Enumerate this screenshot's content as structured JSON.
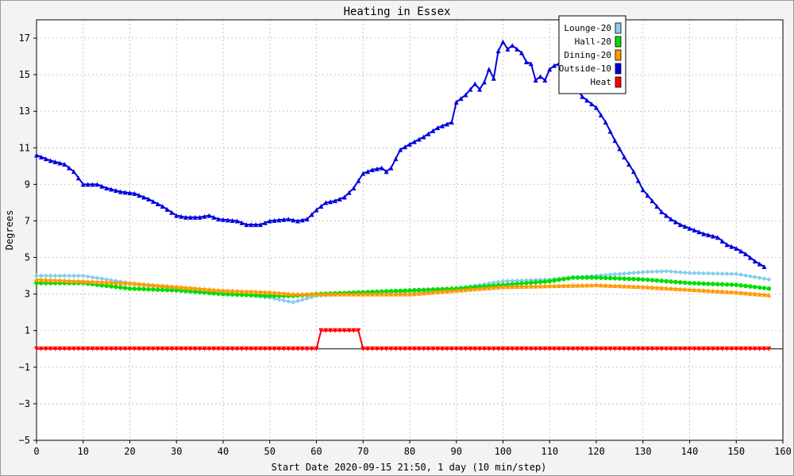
{
  "chart_data": {
    "type": "line",
    "title": "Heating in Essex",
    "xlabel": "Start Date 2020-09-15 21:50, 1 day (10 min/step)",
    "ylabel": "Degrees",
    "xlim": [
      0,
      160
    ],
    "ylim": [
      -5,
      18
    ],
    "x_ticks": [
      0,
      10,
      20,
      30,
      40,
      50,
      60,
      70,
      80,
      90,
      100,
      110,
      120,
      130,
      140,
      150,
      160
    ],
    "y_ticks": [
      -5,
      -3,
      -1,
      1,
      3,
      5,
      7,
      9,
      11,
      13,
      15,
      17
    ],
    "grid": true,
    "legend_position": "top-right",
    "series": [
      {
        "name": "Lounge-20",
        "color": "#87ceeb",
        "marker": "diamond",
        "points": [
          [
            0,
            4.0
          ],
          [
            10,
            4.0
          ],
          [
            20,
            3.6
          ],
          [
            30,
            3.3
          ],
          [
            40,
            3.1
          ],
          [
            50,
            2.8
          ],
          [
            55,
            2.55
          ],
          [
            60,
            2.9
          ],
          [
            70,
            3.1
          ],
          [
            80,
            3.1
          ],
          [
            90,
            3.3
          ],
          [
            100,
            3.7
          ],
          [
            110,
            3.8
          ],
          [
            120,
            4.0
          ],
          [
            130,
            4.2
          ],
          [
            135,
            4.25
          ],
          [
            140,
            4.15
          ],
          [
            150,
            4.1
          ],
          [
            157,
            3.8
          ]
        ]
      },
      {
        "name": "Hall-20",
        "color": "#00dd00",
        "marker": "circle",
        "points": [
          [
            0,
            3.6
          ],
          [
            10,
            3.6
          ],
          [
            20,
            3.3
          ],
          [
            30,
            3.2
          ],
          [
            40,
            3.0
          ],
          [
            50,
            2.9
          ],
          [
            55,
            2.9
          ],
          [
            60,
            3.0
          ],
          [
            70,
            3.1
          ],
          [
            80,
            3.2
          ],
          [
            90,
            3.3
          ],
          [
            100,
            3.5
          ],
          [
            110,
            3.7
          ],
          [
            115,
            3.9
          ],
          [
            120,
            3.9
          ],
          [
            130,
            3.8
          ],
          [
            140,
            3.6
          ],
          [
            150,
            3.5
          ],
          [
            157,
            3.3
          ]
        ]
      },
      {
        "name": "Dining-20",
        "color": "#ff9900",
        "marker": "triangle-up",
        "points": [
          [
            0,
            3.8
          ],
          [
            10,
            3.7
          ],
          [
            20,
            3.6
          ],
          [
            30,
            3.4
          ],
          [
            40,
            3.2
          ],
          [
            50,
            3.1
          ],
          [
            55,
            3.0
          ],
          [
            60,
            3.0
          ],
          [
            70,
            3.0
          ],
          [
            80,
            3.0
          ],
          [
            90,
            3.2
          ],
          [
            100,
            3.4
          ],
          [
            110,
            3.45
          ],
          [
            120,
            3.5
          ],
          [
            130,
            3.4
          ],
          [
            140,
            3.25
          ],
          [
            150,
            3.1
          ],
          [
            157,
            2.95
          ]
        ]
      },
      {
        "name": "Outside-10",
        "color": "#0000dd",
        "marker": "triangle-up",
        "points": [
          [
            0,
            10.6
          ],
          [
            3,
            10.3
          ],
          [
            6,
            10.1
          ],
          [
            8,
            9.7
          ],
          [
            10,
            9.0
          ],
          [
            13,
            9.0
          ],
          [
            15,
            8.8
          ],
          [
            18,
            8.6
          ],
          [
            21,
            8.5
          ],
          [
            24,
            8.2
          ],
          [
            27,
            7.8
          ],
          [
            30,
            7.3
          ],
          [
            32,
            7.2
          ],
          [
            35,
            7.2
          ],
          [
            37,
            7.3
          ],
          [
            39,
            7.1
          ],
          [
            43,
            7.0
          ],
          [
            45,
            6.8
          ],
          [
            48,
            6.8
          ],
          [
            50,
            7.0
          ],
          [
            54,
            7.1
          ],
          [
            56,
            7.0
          ],
          [
            58,
            7.1
          ],
          [
            60,
            7.6
          ],
          [
            62,
            8.0
          ],
          [
            64,
            8.1
          ],
          [
            66,
            8.3
          ],
          [
            68,
            8.8
          ],
          [
            70,
            9.6
          ],
          [
            72,
            9.8
          ],
          [
            74,
            9.9
          ],
          [
            75,
            9.7
          ],
          [
            76,
            9.9
          ],
          [
            78,
            10.9
          ],
          [
            80,
            11.2
          ],
          [
            83,
            11.6
          ],
          [
            86,
            12.1
          ],
          [
            89,
            12.4
          ],
          [
            90,
            13.5
          ],
          [
            92,
            13.9
          ],
          [
            94,
            14.5
          ],
          [
            95,
            14.2
          ],
          [
            96,
            14.6
          ],
          [
            97,
            15.3
          ],
          [
            98,
            14.8
          ],
          [
            99,
            16.3
          ],
          [
            100,
            16.8
          ],
          [
            101,
            16.4
          ],
          [
            102,
            16.6
          ],
          [
            104,
            16.2
          ],
          [
            105,
            15.7
          ],
          [
            106,
            15.6
          ],
          [
            107,
            14.7
          ],
          [
            108,
            14.9
          ],
          [
            109,
            14.7
          ],
          [
            110,
            15.3
          ],
          [
            111,
            15.5
          ],
          [
            112,
            15.6
          ],
          [
            113,
            15.2
          ],
          [
            115,
            14.5
          ],
          [
            117,
            13.8
          ],
          [
            120,
            13.2
          ],
          [
            122,
            12.4
          ],
          [
            124,
            11.4
          ],
          [
            126,
            10.5
          ],
          [
            128,
            9.7
          ],
          [
            130,
            8.7
          ],
          [
            132,
            8.1
          ],
          [
            134,
            7.5
          ],
          [
            136,
            7.1
          ],
          [
            138,
            6.8
          ],
          [
            140,
            6.6
          ],
          [
            143,
            6.3
          ],
          [
            146,
            6.1
          ],
          [
            148,
            5.7
          ],
          [
            150,
            5.5
          ],
          [
            152,
            5.2
          ],
          [
            154,
            4.8
          ],
          [
            156,
            4.5
          ]
        ]
      },
      {
        "name": "Heat",
        "color": "#ff0000",
        "marker": "triangle-down",
        "points": [
          [
            0,
            0
          ],
          [
            60,
            0
          ],
          [
            61,
            1
          ],
          [
            69,
            1
          ],
          [
            70,
            0
          ],
          [
            157,
            0
          ]
        ]
      }
    ]
  }
}
